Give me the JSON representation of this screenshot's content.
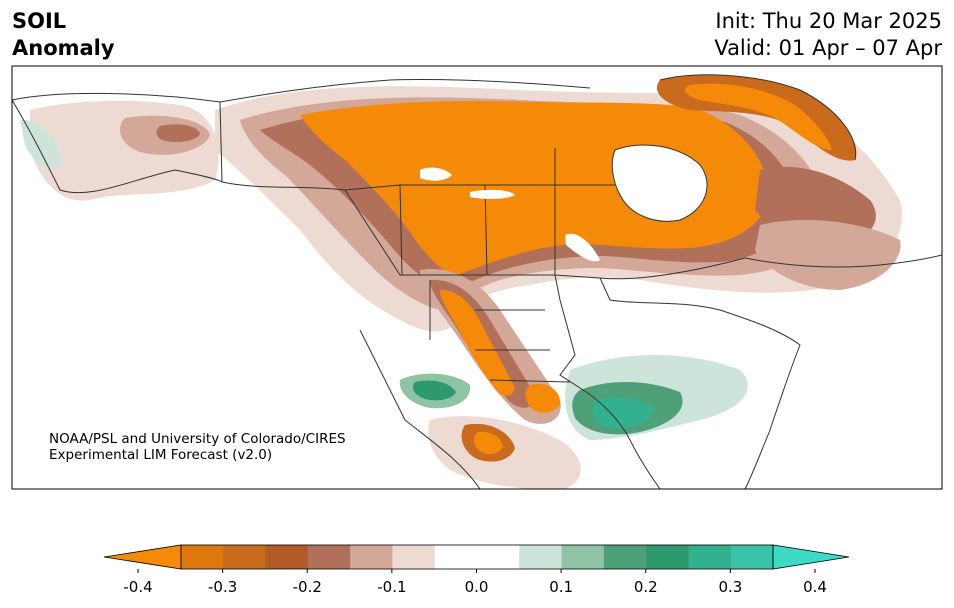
{
  "header": {
    "title_line1": "SOIL",
    "title_line2": "Anomaly",
    "init": "Init: Thu 20 Mar 2025",
    "valid": "Valid: 01 Apr – 07 Apr"
  },
  "credit": {
    "line1": "NOAA/PSL and University of Colorado/CIRES",
    "line2": "Experimental LIM Forecast (v2.0)"
  },
  "colorbar": {
    "colors": [
      "#f48a08",
      "#dd780f",
      "#c96a1d",
      "#b25a28",
      "#b0705a",
      "#d3a898",
      "#ecdad3",
      "#ffffff",
      "#ffffff",
      "#cde4db",
      "#8fc3a6",
      "#4da077",
      "#2d9a6e",
      "#33b08e",
      "#39c4a9",
      "#3ddbc6"
    ],
    "ticks": [
      "-0.4",
      "-0.3",
      "-0.2",
      "-0.1",
      "0.0",
      "0.1",
      "0.2",
      "0.3",
      "0.4"
    ],
    "min": -0.4,
    "max": 0.4
  },
  "palette": {
    "strong_dry": "#f48a08",
    "dry2": "#c96a1d",
    "dry3": "#b0705a",
    "dry4": "#d3a898",
    "dry5": "#ecdad3",
    "wet1": "#cde4db",
    "wet2": "#8fc3a6",
    "wet3": "#4da077",
    "wet4": "#33b08e",
    "border": "#333333"
  }
}
